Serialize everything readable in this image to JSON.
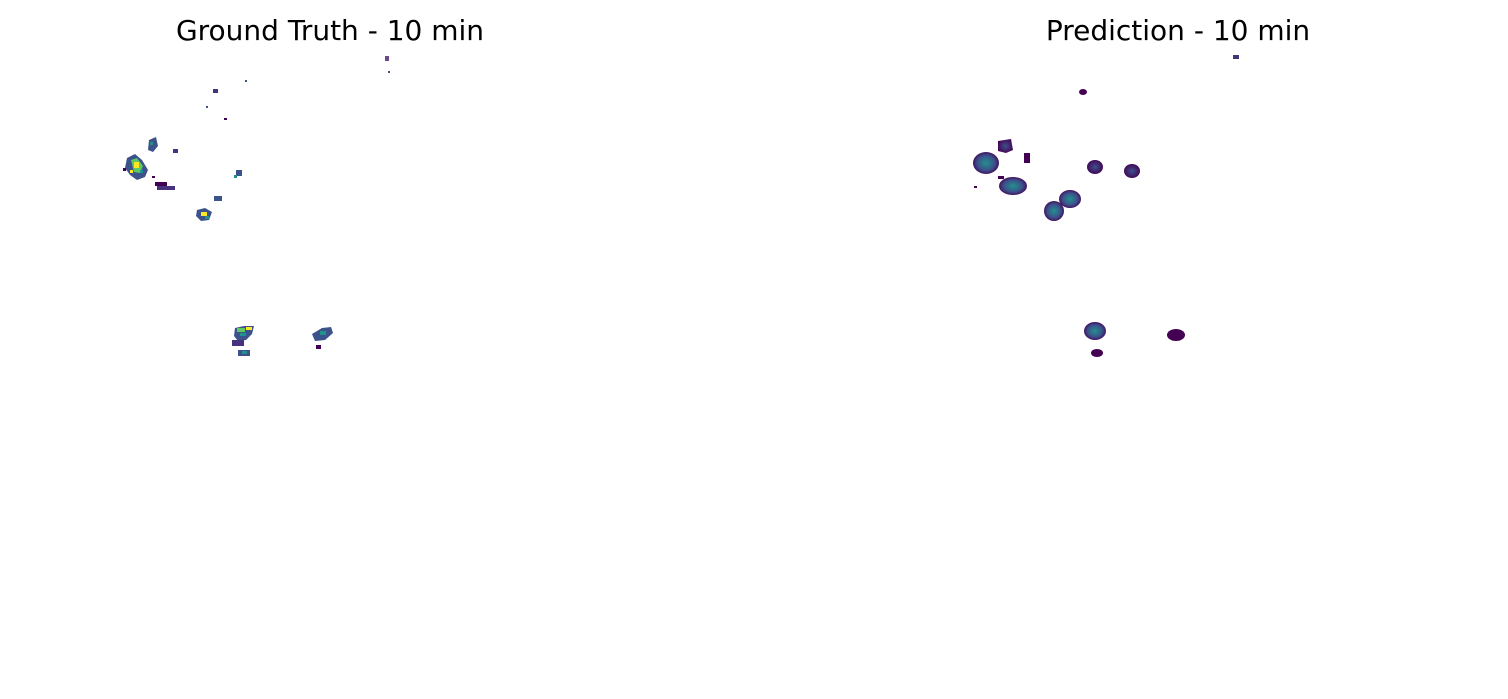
{
  "panels": {
    "ground_truth": {
      "title": "Ground Truth - 10 min"
    },
    "prediction": {
      "title": "Prediction - 10 min"
    }
  },
  "colormap": {
    "name": "viridis",
    "low": "#440154",
    "mid": "#3b528b",
    "teal": "#21918c",
    "green": "#5ec962",
    "high": "#fde725"
  }
}
